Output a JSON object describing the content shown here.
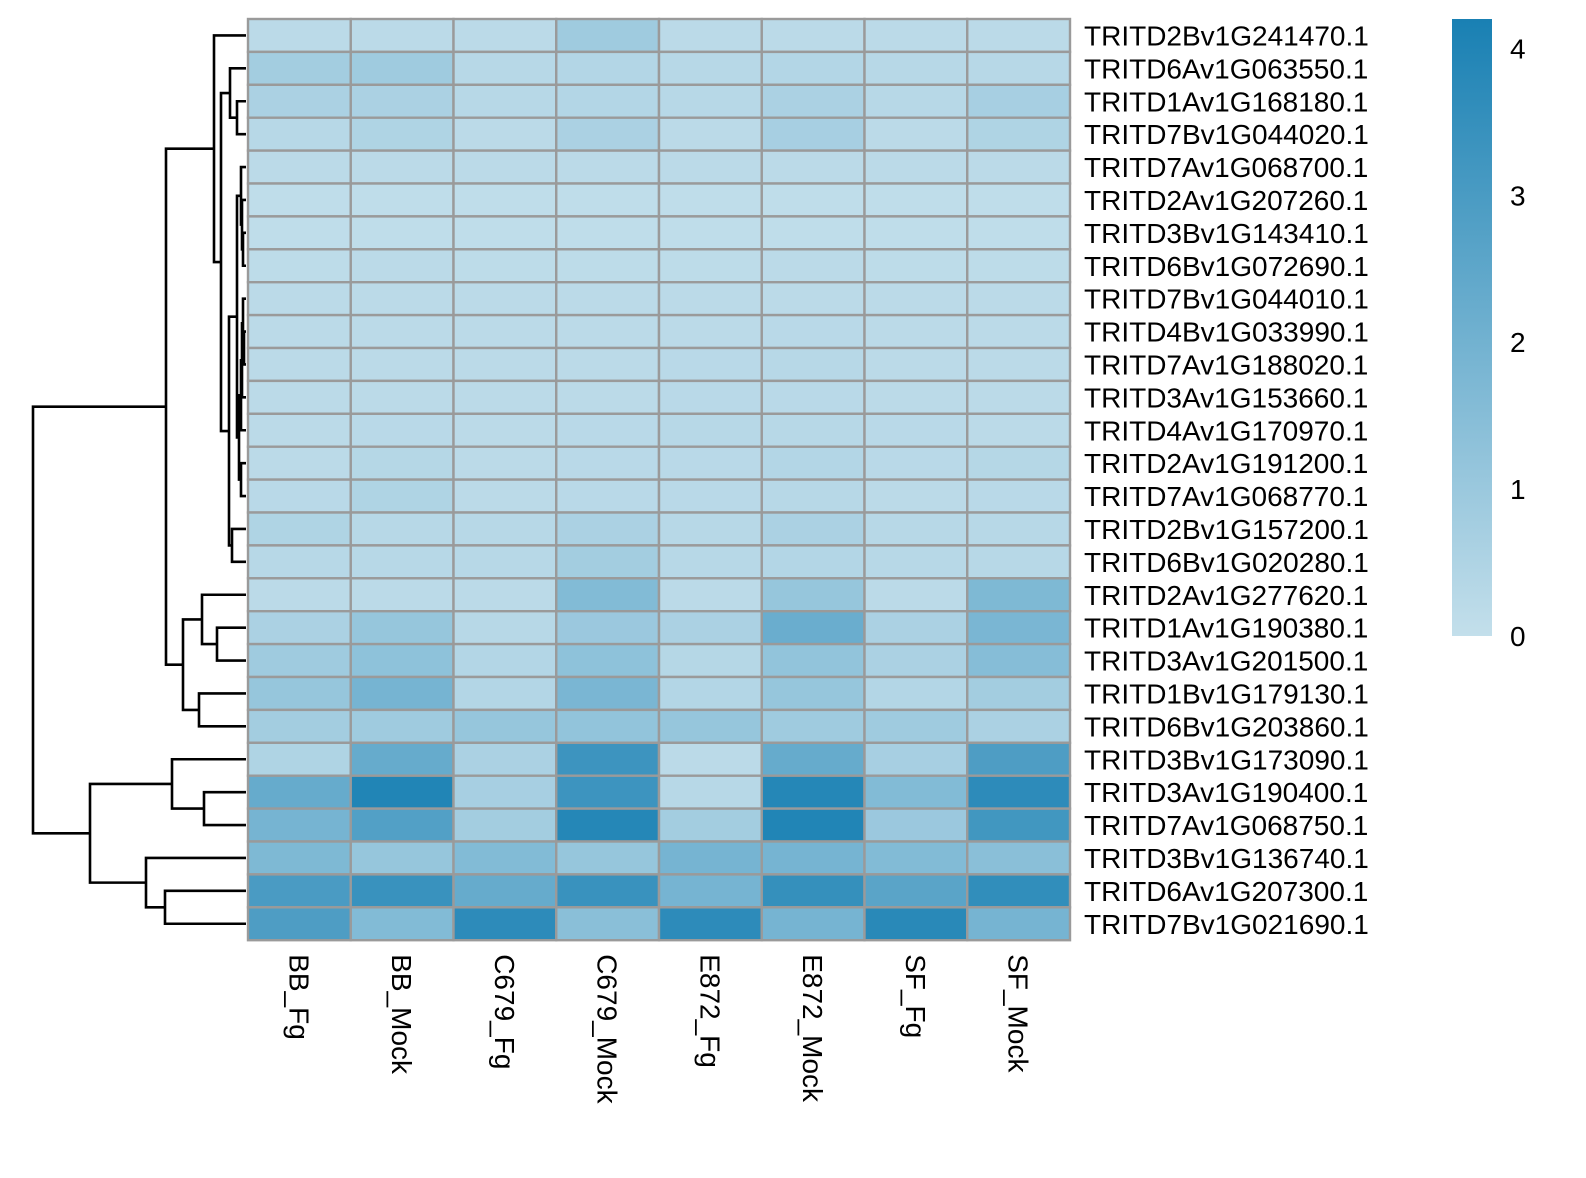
{
  "chart_data": {
    "type": "heatmap",
    "columns": [
      "BB_Fg",
      "BB_Mock",
      "C679_Fg",
      "C679_Mock",
      "E872_Fg",
      "E872_Mock",
      "SF_Fg",
      "SF_Mock"
    ],
    "rows": [
      "TRITD2Bv1G241470.1",
      "TRITD6Av1G063550.1",
      "TRITD1Av1G168180.1",
      "TRITD7Bv1G044020.1",
      "TRITD7Av1G068700.1",
      "TRITD2Av1G207260.1",
      "TRITD3Bv1G143410.1",
      "TRITD6Bv1G072690.1",
      "TRITD7Bv1G044010.1",
      "TRITD4Bv1G033990.1",
      "TRITD7Av1G188020.1",
      "TRITD3Av1G153660.1",
      "TRITD4Av1G170970.1",
      "TRITD2Av1G191200.1",
      "TRITD7Av1G068770.1",
      "TRITD2Bv1G157200.1",
      "TRITD6Bv1G020280.1",
      "TRITD2Av1G277620.1",
      "TRITD1Av1G190380.1",
      "TRITD3Av1G201500.1",
      "TRITD1Bv1G179130.1",
      "TRITD6Bv1G203860.1",
      "TRITD3Bv1G173090.1",
      "TRITD3Av1G190400.1",
      "TRITD7Av1G068750.1",
      "TRITD3Bv1G136740.1",
      "TRITD6Av1G207300.1",
      "TRITD7Bv1G021690.1"
    ],
    "values": [
      [
        0.2,
        0.2,
        0.2,
        0.9,
        0.2,
        0.2,
        0.2,
        0.2
      ],
      [
        0.8,
        0.9,
        0.3,
        0.4,
        0.3,
        0.4,
        0.3,
        0.3
      ],
      [
        0.6,
        0.6,
        0.3,
        0.4,
        0.3,
        0.6,
        0.3,
        0.7
      ],
      [
        0.3,
        0.5,
        0.2,
        0.6,
        0.2,
        0.7,
        0.2,
        0.5
      ],
      [
        0.2,
        0.2,
        0.2,
        0.2,
        0.2,
        0.2,
        0.2,
        0.2
      ],
      [
        0.1,
        0.1,
        0.1,
        0.1,
        0.1,
        0.1,
        0.1,
        0.1
      ],
      [
        0.1,
        0.1,
        0.1,
        0.1,
        0.1,
        0.1,
        0.1,
        0.1
      ],
      [
        0.15,
        0.2,
        0.15,
        0.15,
        0.15,
        0.2,
        0.15,
        0.15
      ],
      [
        0.2,
        0.2,
        0.2,
        0.2,
        0.2,
        0.2,
        0.2,
        0.2
      ],
      [
        0.2,
        0.2,
        0.2,
        0.2,
        0.2,
        0.25,
        0.2,
        0.2
      ],
      [
        0.2,
        0.2,
        0.2,
        0.2,
        0.25,
        0.3,
        0.2,
        0.2
      ],
      [
        0.2,
        0.2,
        0.2,
        0.2,
        0.25,
        0.25,
        0.2,
        0.2
      ],
      [
        0.2,
        0.25,
        0.2,
        0.25,
        0.3,
        0.3,
        0.25,
        0.2
      ],
      [
        0.2,
        0.35,
        0.2,
        0.25,
        0.25,
        0.4,
        0.25,
        0.35
      ],
      [
        0.25,
        0.5,
        0.2,
        0.25,
        0.25,
        0.3,
        0.2,
        0.25
      ],
      [
        0.5,
        0.3,
        0.3,
        0.6,
        0.3,
        0.6,
        0.3,
        0.3
      ],
      [
        0.3,
        0.3,
        0.3,
        0.8,
        0.3,
        0.4,
        0.3,
        0.3
      ],
      [
        0.2,
        0.2,
        0.2,
        1.6,
        0.2,
        1.1,
        0.2,
        1.7
      ],
      [
        0.6,
        1.1,
        0.3,
        1.0,
        0.6,
        2.2,
        0.6,
        1.8
      ],
      [
        0.9,
        1.3,
        0.4,
        1.3,
        0.35,
        1.2,
        0.6,
        1.5
      ],
      [
        1.1,
        1.9,
        0.4,
        1.8,
        0.4,
        1.1,
        0.4,
        0.8
      ],
      [
        0.8,
        0.9,
        1.1,
        1.2,
        1.1,
        0.9,
        0.9,
        0.6
      ],
      [
        0.5,
        2.3,
        0.6,
        3.3,
        0.2,
        2.3,
        0.7,
        2.9
      ],
      [
        2.3,
        4.0,
        0.7,
        3.3,
        0.3,
        3.9,
        1.6,
        3.7
      ],
      [
        1.9,
        2.8,
        0.8,
        3.9,
        0.8,
        4.0,
        1.0,
        3.2
      ],
      [
        1.7,
        1.1,
        1.6,
        1.1,
        1.9,
        1.9,
        1.6,
        1.4
      ],
      [
        3.0,
        3.4,
        2.3,
        3.4,
        1.9,
        3.5,
        2.6,
        3.6
      ],
      [
        2.9,
        1.6,
        3.7,
        1.4,
        3.7,
        1.9,
        3.8,
        1.9
      ]
    ],
    "colorbar": {
      "min": 0,
      "max": 4.2,
      "ticks": [
        "0",
        "1",
        "2",
        "3",
        "4"
      ],
      "tick_values": [
        0,
        1,
        2,
        3,
        4
      ],
      "low_color": "#c3dfeb",
      "high_color": "#1980b3"
    },
    "border_color": "#9a9a9a",
    "row_dendrogram": true,
    "title": "",
    "xlabel": "",
    "ylabel": ""
  }
}
